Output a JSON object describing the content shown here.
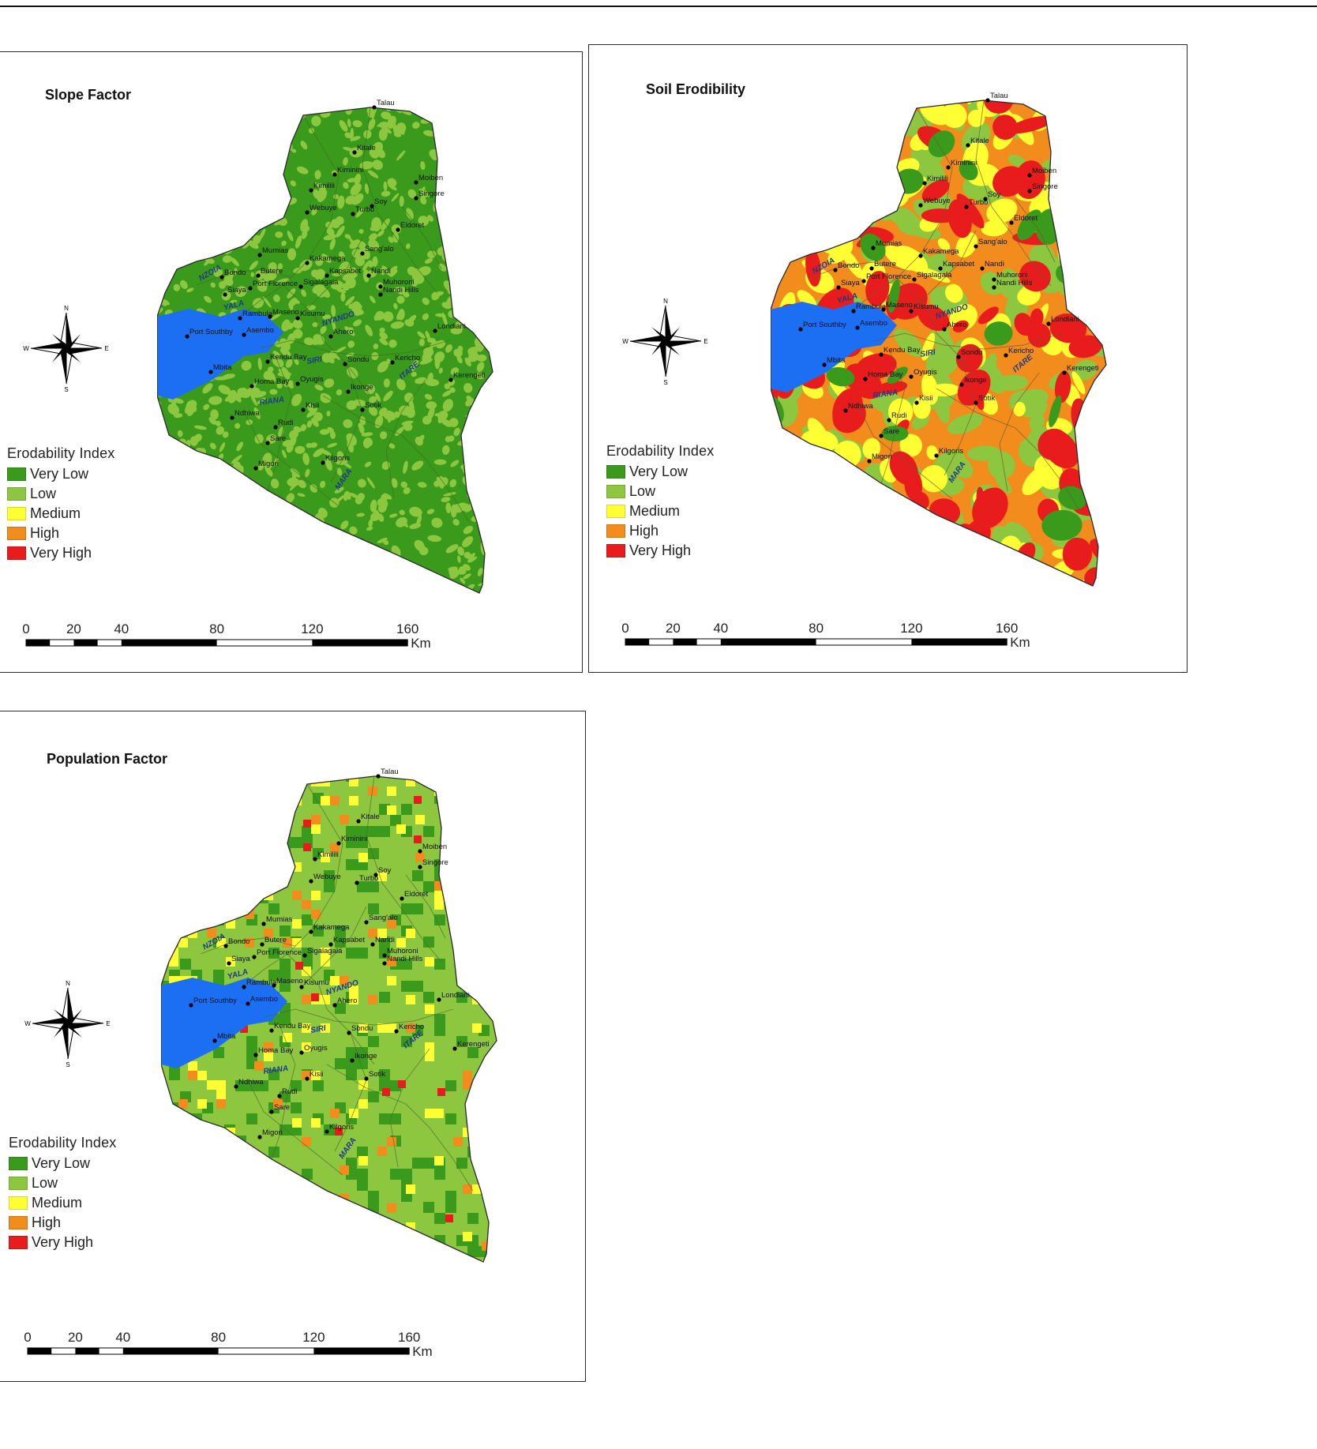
{
  "legend": {
    "title": "Erodability Index",
    "classes": [
      {
        "label": "Very Low",
        "color": "#3a9a1c"
      },
      {
        "label": "Low",
        "color": "#8dc63f"
      },
      {
        "label": "Medium",
        "color": "#ffff33"
      },
      {
        "label": "High",
        "color": "#f28c1c"
      },
      {
        "label": "Very High",
        "color": "#e81c1c"
      }
    ]
  },
  "colors": {
    "water": "#1c6ef2",
    "road": "#6b7a52",
    "town": "#000000",
    "border": "#2a2a2a"
  },
  "scale": {
    "ticks": [
      "0",
      "20",
      "40",
      "80",
      "120",
      "160"
    ],
    "unit": "Km"
  },
  "compass": {
    "n": "N",
    "s": "S",
    "e": "E",
    "w": "W",
    "icon": "north-arrow-icon"
  },
  "panels": [
    {
      "id": "slope",
      "title": "Slope Factor",
      "base_color": "Very Low"
    },
    {
      "id": "soil",
      "title": "Soil Erodibility",
      "base_color": "High"
    },
    {
      "id": "population",
      "title": "Population Factor",
      "base_color": "Low"
    }
  ],
  "towns": [
    "Talau",
    "Kitale",
    "Kiminini",
    "Kimilili",
    "Moiben",
    "Singore",
    "Soy",
    "Turbo",
    "Webuye",
    "Eldoret",
    "Sang'alo",
    "Mumias",
    "Kakamega",
    "Butere",
    "Bondo",
    "Kapsabet",
    "Nandi",
    "Siaya",
    "Port Florence",
    "Sigalagala",
    "Muhoroni",
    "Nandi Hills",
    "Rambula",
    "Maseno",
    "Kisumu",
    "Port Southby",
    "Asembo",
    "Ahero",
    "Londiani",
    "Kendu Bay",
    "Sondu",
    "Kericho",
    "Mbita",
    "Homa Bay",
    "Oyugis",
    "Ikonge",
    "Kerengeti",
    "Kisii",
    "Sotik",
    "Ndhiwa",
    "Rudi",
    "Sare",
    "Migori",
    "Kilgoris"
  ],
  "rivers": [
    "NZOIA",
    "YALA",
    "NYANDO",
    "SIRI",
    "ITARE",
    "RIANA",
    "MARA"
  ]
}
